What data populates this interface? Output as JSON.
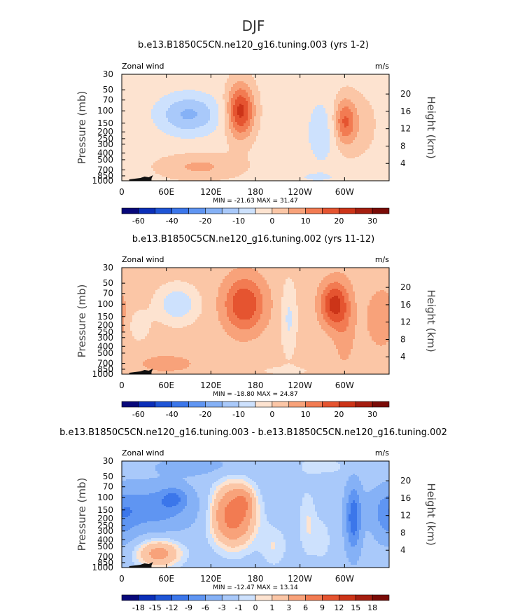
{
  "chart_data": {
    "type": "contour",
    "title": "DJF",
    "colors": {
      "blues": [
        "#08087a",
        "#0b2fb8",
        "#1f55d6",
        "#3b76ea",
        "#5f95f2",
        "#85b1f6",
        "#a9c9fa",
        "#cde1fd"
      ],
      "reds": [
        "#fde3d0",
        "#fbc6a6",
        "#f8a27a",
        "#f27b52",
        "#e55430",
        "#cc3418",
        "#a51e10",
        "#7a0b07"
      ]
    },
    "panels": [
      {
        "title": "b.e13.B1850C5CN.ne120_g16.tuning.003 (yrs 1-2)",
        "variable_label": "Zonal wind",
        "units_label": "m/s",
        "min_max_text": "MIN = -21.63   MAX =  31.47",
        "colorbar_ticks": [
          "-60",
          "-40",
          "-20",
          "-10",
          "0",
          "10",
          "20",
          "30"
        ],
        "levels": [
          -70,
          -60,
          -50,
          -40,
          -30,
          -20,
          -15,
          -10,
          -5,
          0,
          5,
          10,
          15,
          20,
          25,
          30,
          35
        ],
        "background_value": -2,
        "features": [
          {
            "lon": 160,
            "logp": 2.0,
            "slon": 18,
            "slogp": 0.38,
            "amp": 24
          },
          {
            "lon": 270,
            "logp": 2.3,
            "slon": 22,
            "slogp": 0.5,
            "amp": -6
          },
          {
            "lon": 90,
            "logp": 2.05,
            "slon": 40,
            "slogp": 0.28,
            "amp": -14
          },
          {
            "lon": 300,
            "logp": 2.15,
            "slon": 14,
            "slogp": 0.32,
            "amp": 15
          },
          {
            "lon": 315,
            "logp": 2.2,
            "slon": 28,
            "slogp": 0.45,
            "amp": 5
          },
          {
            "lon": 105,
            "logp": 2.8,
            "slon": 55,
            "slogp": 0.18,
            "amp": 8
          },
          {
            "lon": 260,
            "logp": 2.95,
            "slon": 40,
            "slogp": 0.08,
            "amp": -3
          },
          {
            "lon": 10,
            "logp": 2.3,
            "slon": 20,
            "slogp": 0.4,
            "amp": -1
          }
        ]
      },
      {
        "title": "b.e13.B1850C5CN.ne120_g16.tuning.002 (yrs 11-12)",
        "variable_label": "Zonal wind",
        "units_label": "m/s",
        "min_max_text": "MIN = -18.80   MAX =  24.87",
        "colorbar_ticks": [
          "-60",
          "-40",
          "-20",
          "-10",
          "0",
          "10",
          "20",
          "30"
        ],
        "levels": [
          -70,
          -60,
          -50,
          -40,
          -30,
          -20,
          -15,
          -10,
          -5,
          0,
          5,
          10,
          15,
          20,
          25,
          30,
          35
        ],
        "background_value": 2,
        "features": [
          {
            "lon": 165,
            "logp": 2.0,
            "slon": 28,
            "slogp": 0.4,
            "amp": 18
          },
          {
            "lon": 285,
            "logp": 2.0,
            "slon": 18,
            "slogp": 0.32,
            "amp": 19
          },
          {
            "lon": 75,
            "logp": 2.0,
            "slon": 26,
            "slogp": 0.25,
            "amp": -12
          },
          {
            "lon": 20,
            "logp": 2.3,
            "slon": 18,
            "slogp": 0.25,
            "amp": -5
          },
          {
            "lon": 225,
            "logp": 2.2,
            "slon": 10,
            "slogp": 0.5,
            "amp": -8
          },
          {
            "lon": 300,
            "logp": 2.3,
            "slon": 15,
            "slogp": 0.6,
            "amp": 6
          },
          {
            "lon": -10,
            "logp": 2.2,
            "slon": 20,
            "slogp": 0.4,
            "amp": 8
          },
          {
            "lon": 60,
            "logp": 2.85,
            "slon": 45,
            "slogp": 0.15,
            "amp": 5
          },
          {
            "lon": 220,
            "logp": 2.95,
            "slon": 45,
            "slogp": 0.08,
            "amp": -3
          }
        ]
      },
      {
        "title": "b.e13.B1850C5CN.ne120_g16.tuning.003 - b.e13.B1850C5CN.ne120_g16.tuning.002",
        "variable_label": "Zonal wind",
        "units_label": "m/s",
        "min_max_text": "MIN = -12.47   MAX =  13.14",
        "colorbar_ticks": [
          "-18",
          "-15",
          "-12",
          "-9",
          "-6",
          "-3",
          "-1",
          "0",
          "1",
          "3",
          "6",
          "9",
          "12",
          "15",
          "18"
        ],
        "levels": [
          -21,
          -18,
          -15,
          -12,
          -9,
          -6,
          -3,
          -1,
          0,
          1,
          3,
          6,
          9,
          12,
          15,
          18,
          21
        ],
        "background_value": -2,
        "features": [
          {
            "lon": 150,
            "logp": 2.25,
            "slon": 28,
            "slogp": 0.42,
            "amp": 10
          },
          {
            "lon": 165,
            "logp": 2.05,
            "slon": 12,
            "slogp": 0.18,
            "amp": 3
          },
          {
            "lon": 40,
            "logp": 2.15,
            "slon": 55,
            "slogp": 0.3,
            "amp": -6
          },
          {
            "lon": 70,
            "logp": 2.0,
            "slon": 18,
            "slogp": 0.15,
            "amp": -5
          },
          {
            "lon": 0,
            "logp": 2.3,
            "slon": 20,
            "slogp": 0.35,
            "amp": -4
          },
          {
            "lon": 312,
            "logp": 2.3,
            "slon": 10,
            "slogp": 0.45,
            "amp": -9
          },
          {
            "lon": 250,
            "logp": 2.35,
            "slon": 12,
            "slogp": 0.5,
            "amp": 2
          },
          {
            "lon": 270,
            "logp": 2.6,
            "slon": 14,
            "slogp": 0.35,
            "amp": 1.5
          },
          {
            "lon": 50,
            "logp": 2.8,
            "slon": 30,
            "slogp": 0.2,
            "amp": 6
          },
          {
            "lon": 205,
            "logp": 2.7,
            "slon": 18,
            "slogp": 0.3,
            "amp": 2
          },
          {
            "lon": 100,
            "logp": 1.55,
            "slon": 60,
            "slogp": 0.15,
            "amp": -2
          },
          {
            "lon": 270,
            "logp": 1.55,
            "slon": 40,
            "slogp": 0.15,
            "amp": 1.5
          }
        ]
      }
    ],
    "x_ticks": [
      "0",
      "60E",
      "120E",
      "180",
      "120W",
      "60W"
    ],
    "x_tick_lon": [
      0,
      60,
      120,
      180,
      240,
      300
    ],
    "lon_range": [
      0,
      360
    ],
    "y_left_label": "Pressure (mb)",
    "y_left_ticks": [
      "30",
      "50",
      "70",
      "100",
      "150",
      "200",
      "250",
      "300",
      "400",
      "500",
      "700",
      "850",
      "1000"
    ],
    "y_left_values": [
      30,
      50,
      70,
      100,
      150,
      200,
      250,
      300,
      400,
      500,
      700,
      850,
      1000
    ],
    "y_right_label": "Height (km)",
    "y_right_ticks": [
      "20",
      "16",
      "12",
      "8",
      "4"
    ],
    "y_right_values_km": [
      20,
      16,
      12,
      8,
      4
    ],
    "scale_height_km": 7,
    "surface_pressure_mb": 1000,
    "orography_lon_range": [
      10,
      40
    ]
  }
}
